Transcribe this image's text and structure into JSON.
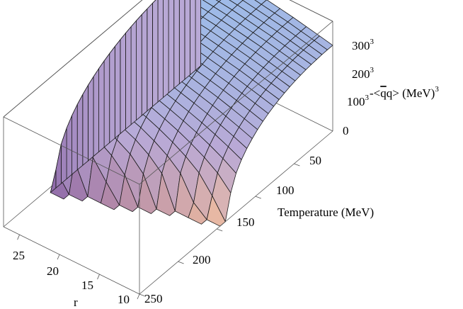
{
  "chart_data": {
    "type": "surface3d",
    "title": "",
    "axes": {
      "temperature": {
        "label": "Temperature (MeV)",
        "range": [
          0,
          250
        ],
        "ticks": [
          "50",
          "100",
          "150",
          "200",
          "250"
        ]
      },
      "r": {
        "label": "r",
        "range": [
          10,
          27
        ],
        "ticks": [
          "25",
          "20",
          "15",
          "10"
        ]
      },
      "condensate": {
        "label_prefix": "-<",
        "label_q1": "q",
        "label_q2": "q",
        "label_suffix": "> (MeV)",
        "label_sup": "3",
        "range": [
          0,
          320
        ],
        "ticks": [
          {
            "base": "300",
            "sup": "3"
          },
          {
            "base": "200",
            "sup": "3"
          },
          {
            "base": "100",
            "sup": "3"
          },
          {
            "base": "0",
            "sup": ""
          }
        ]
      }
    },
    "surface": {
      "description_model": "condensate^(1/3) vanishes above an r-dependent critical temperature",
      "critical_temperature_at_r": [
        {
          "r": 10,
          "Tc": 135
        },
        {
          "r": 15,
          "Tc": 152
        },
        {
          "r": 20,
          "Tc": 170
        },
        {
          "r": 25,
          "Tc": 185
        },
        {
          "r": 27,
          "Tc": 190
        }
      ],
      "zero_temperature_value_at_r": [
        {
          "r": 10,
          "value": 255
        },
        {
          "r": 15,
          "value": 280
        },
        {
          "r": 20,
          "value": 300
        },
        {
          "r": 25,
          "value": 315
        },
        {
          "r": 27,
          "value": 320
        }
      ]
    },
    "box": true,
    "grid": false,
    "colors": {
      "high": "#9bbdea",
      "mid": "#b9a9d6",
      "low_r": "#8a65a8",
      "low_t": "#f0bd9f",
      "mesh": "#1a1a1a",
      "box": "#555555"
    }
  }
}
